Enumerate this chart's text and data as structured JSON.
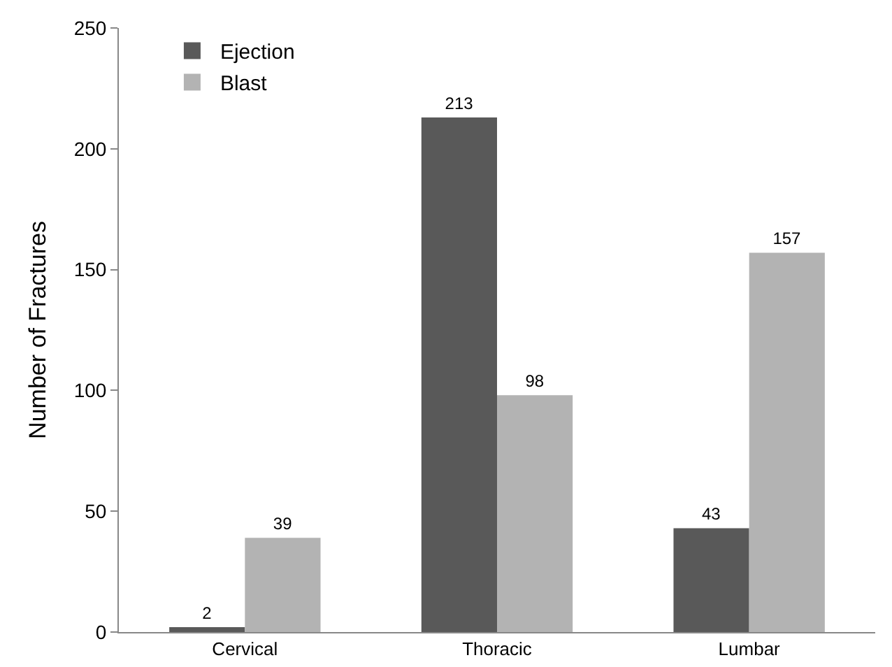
{
  "chart_data": {
    "type": "bar",
    "ylabel": "Number of Fractures",
    "categories": [
      "Cervical",
      "Thoracic",
      "Lumbar"
    ],
    "series": [
      {
        "name": "Ejection",
        "color": "#595959",
        "values": [
          2,
          213,
          43
        ]
      },
      {
        "name": "Blast",
        "color": "#b3b3b3",
        "values": [
          39,
          98,
          157
        ]
      }
    ],
    "ylim": [
      0,
      250
    ],
    "yticks": [
      0,
      50,
      100,
      150,
      200,
      250
    ],
    "grid": false,
    "legend": "top left",
    "data_labels": true
  }
}
